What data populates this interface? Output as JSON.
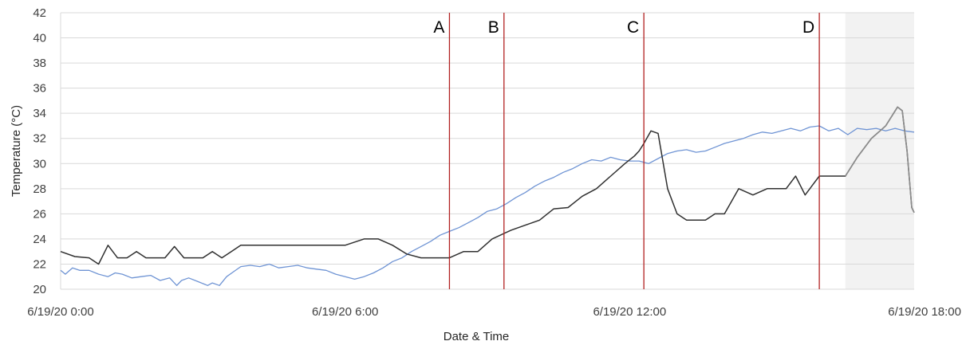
{
  "chart_data": {
    "type": "line",
    "xlabel": "Date & Time",
    "ylabel": "Temperature (°C)",
    "ylim": [
      20,
      42
    ],
    "y_ticks": [
      "20",
      "22",
      "24",
      "26",
      "28",
      "30",
      "32",
      "34",
      "36",
      "38",
      "40",
      "42"
    ],
    "xlim": [
      "6/19/20 0:00",
      "6/19/20 18:00"
    ],
    "x_unit": "hours since 6/19/20 0:00",
    "x_ticks": [
      {
        "x": 0,
        "label": "6/19/20 0:00"
      },
      {
        "x": 6,
        "label": "6/19/20 6:00"
      },
      {
        "x": 12,
        "label": "6/19/20 12:00"
      },
      {
        "x": 18,
        "label": "6/19/20 18:00"
      }
    ],
    "grid": true,
    "shaded_region": {
      "x_start": 16.55,
      "x_end": 18.0,
      "color": "#f2f2f2"
    },
    "markers": [
      {
        "label": "A",
        "x": 8.2
      },
      {
        "label": "B",
        "x": 9.35
      },
      {
        "label": "C",
        "x": 12.3
      },
      {
        "label": "D",
        "x": 16.0
      }
    ],
    "colors": {
      "series_blue": "#6f94d4",
      "series_dark": "#303030",
      "series_dark_shaded": "#8c8c8c",
      "marker_line": "#b22222",
      "grid": "#d9d9d9"
    },
    "series": [
      {
        "color": "#6f94d4",
        "x": [
          0,
          0.1,
          0.25,
          0.4,
          0.6,
          0.8,
          1.0,
          1.15,
          1.3,
          1.5,
          1.7,
          1.9,
          2.1,
          2.3,
          2.45,
          2.55,
          2.7,
          2.9,
          3.1,
          3.2,
          3.35,
          3.5,
          3.65,
          3.8,
          4.0,
          4.2,
          4.4,
          4.6,
          4.8,
          5.0,
          5.2,
          5.4,
          5.6,
          5.8,
          6.0,
          6.2,
          6.4,
          6.6,
          6.8,
          7.0,
          7.2,
          7.4,
          7.6,
          7.8,
          8.0,
          8.2,
          8.4,
          8.6,
          8.8,
          9.0,
          9.2,
          9.4,
          9.6,
          9.8,
          10.0,
          10.2,
          10.4,
          10.6,
          10.8,
          11.0,
          11.2,
          11.4,
          11.6,
          11.8,
          12.0,
          12.2,
          12.4,
          12.6,
          12.8,
          13.0,
          13.2,
          13.4,
          13.6,
          13.8,
          14.0,
          14.2,
          14.4,
          14.6,
          14.8,
          15.0,
          15.2,
          15.4,
          15.6,
          15.8,
          16.0,
          16.2,
          16.4,
          16.6,
          16.8,
          17.0,
          17.2,
          17.4,
          17.6,
          17.8,
          18.0
        ],
        "y": [
          21.5,
          21.2,
          21.7,
          21.5,
          21.5,
          21.2,
          21.0,
          21.3,
          21.2,
          20.9,
          21.0,
          21.1,
          20.7,
          20.9,
          20.3,
          20.7,
          20.9,
          20.6,
          20.3,
          20.5,
          20.3,
          21.0,
          21.4,
          21.8,
          21.9,
          21.8,
          22.0,
          21.7,
          21.8,
          21.9,
          21.7,
          21.6,
          21.5,
          21.2,
          21.0,
          20.8,
          21.0,
          21.3,
          21.7,
          22.2,
          22.5,
          23.0,
          23.4,
          23.8,
          24.3,
          24.6,
          24.9,
          25.3,
          25.7,
          26.2,
          26.4,
          26.8,
          27.3,
          27.7,
          28.2,
          28.6,
          28.9,
          29.3,
          29.6,
          30.0,
          30.3,
          30.2,
          30.5,
          30.3,
          30.2,
          30.2,
          30.0,
          30.4,
          30.8,
          31.0,
          31.1,
          30.9,
          31.0,
          31.3,
          31.6,
          31.8,
          32.0,
          32.3,
          32.5,
          32.4,
          32.6,
          32.8,
          32.6,
          32.9,
          33.0,
          32.6,
          32.8,
          32.3,
          32.8,
          32.7,
          32.8,
          32.6,
          32.8,
          32.6,
          32.5
        ]
      },
      {
        "color": "#303030",
        "x": [
          0,
          0.3,
          0.6,
          0.8,
          1.0,
          1.2,
          1.4,
          1.6,
          1.8,
          2.0,
          2.2,
          2.4,
          2.6,
          2.75,
          3.0,
          3.2,
          3.4,
          3.6,
          3.8,
          4.0,
          4.2,
          4.5,
          4.8,
          5.2,
          5.6,
          6.0,
          6.4,
          6.7,
          7.0,
          7.3,
          7.6,
          7.9,
          8.2,
          8.5,
          8.8,
          9.1,
          9.5,
          9.8,
          10.1,
          10.4,
          10.7,
          11.0,
          11.3,
          11.6,
          11.9,
          12.1,
          12.2,
          12.3,
          12.45,
          12.6,
          12.8,
          13.0,
          13.2,
          13.4,
          13.6,
          13.8,
          14.0,
          14.3,
          14.6,
          14.9,
          15.1,
          15.3,
          15.5,
          15.7,
          16.0,
          16.3,
          16.55,
          16.8,
          17.1,
          17.4,
          17.65,
          17.75,
          17.85,
          17.95,
          18.0
        ],
        "y": [
          23.0,
          22.6,
          22.5,
          22.0,
          23.5,
          22.5,
          22.5,
          23.0,
          22.5,
          22.5,
          22.5,
          23.4,
          22.5,
          22.5,
          22.5,
          23.0,
          22.5,
          23.0,
          23.5,
          23.5,
          23.5,
          23.5,
          23.5,
          23.5,
          23.5,
          23.5,
          24.0,
          24.0,
          23.5,
          22.8,
          22.5,
          22.5,
          22.5,
          23.0,
          23.0,
          24.0,
          24.7,
          25.1,
          25.5,
          26.4,
          26.5,
          27.4,
          28.0,
          29.0,
          30.0,
          30.6,
          31.0,
          31.6,
          32.6,
          32.4,
          28.0,
          26.0,
          25.5,
          25.5,
          25.5,
          26.0,
          26.0,
          28.0,
          27.5,
          28.0,
          28.0,
          28.0,
          29.0,
          27.5,
          29.0,
          29.0,
          29.0,
          30.5,
          32.0,
          33.0,
          34.5,
          34.2,
          31.0,
          26.5,
          26.1
        ]
      }
    ]
  }
}
